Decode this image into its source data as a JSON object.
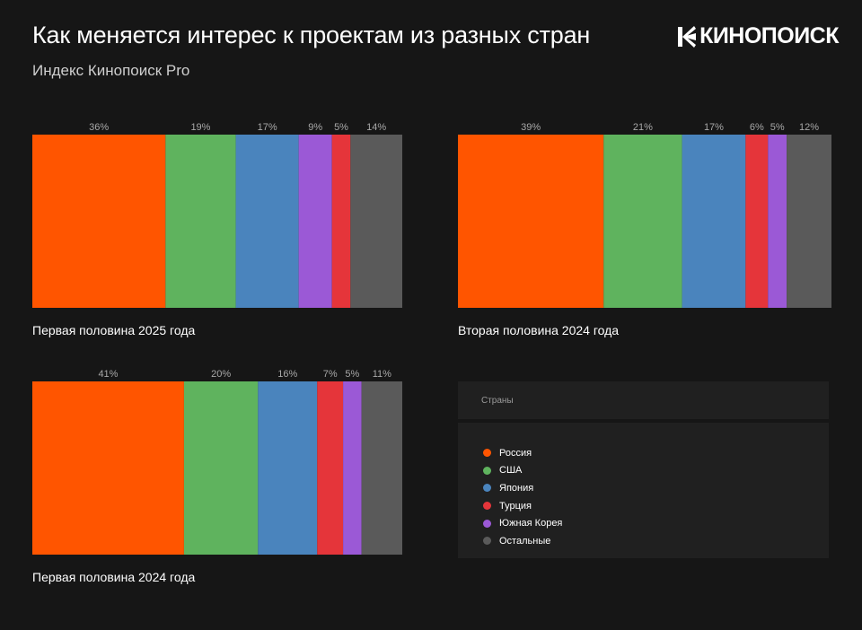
{
  "header": {
    "title": "Как меняется интерес к проектам из разных стран",
    "subtitle": "Индекс Кинопоиск Pro"
  },
  "logo": {
    "text": "КИНОПОИСК",
    "icon": "kinopoisk-burst-logo"
  },
  "legend": {
    "title": "Страны",
    "items": [
      {
        "label": "Россия",
        "color": "#ff5500"
      },
      {
        "label": "США",
        "color": "#5fb35e"
      },
      {
        "label": "Япония",
        "color": "#4a84bd"
      },
      {
        "label": "Турция",
        "color": "#e5353a"
      },
      {
        "label": "Южная Корея",
        "color": "#9b59d6"
      },
      {
        "label": "Остальные",
        "color": "#5a5a5a"
      }
    ]
  },
  "chart_data": [
    {
      "type": "bar",
      "subtype": "stacked-100-horizontal",
      "caption": "Первая половина 2025 года",
      "series": [
        {
          "name": "Россия",
          "value": 36,
          "label": "36%"
        },
        {
          "name": "США",
          "value": 19,
          "label": "19%"
        },
        {
          "name": "Япония",
          "value": 17,
          "label": "17%"
        },
        {
          "name": "Южная Корея",
          "value": 9,
          "label": "9%"
        },
        {
          "name": "Турция",
          "value": 5,
          "label": "5%"
        },
        {
          "name": "Остальные",
          "value": 14,
          "label": "14%"
        }
      ]
    },
    {
      "type": "bar",
      "subtype": "stacked-100-horizontal",
      "caption": "Вторая половина 2024 года",
      "series": [
        {
          "name": "Россия",
          "value": 39,
          "label": "39%"
        },
        {
          "name": "США",
          "value": 21,
          "label": "21%"
        },
        {
          "name": "Япония",
          "value": 17,
          "label": "17%"
        },
        {
          "name": "Турция",
          "value": 6,
          "label": "6%"
        },
        {
          "name": "Южная Корея",
          "value": 5,
          "label": "5%"
        },
        {
          "name": "Остальные",
          "value": 12,
          "label": "12%"
        }
      ]
    },
    {
      "type": "bar",
      "subtype": "stacked-100-horizontal",
      "caption": "Первая половина 2024 года",
      "series": [
        {
          "name": "Россия",
          "value": 41,
          "label": "41%"
        },
        {
          "name": "США",
          "value": 20,
          "label": "20%"
        },
        {
          "name": "Япония",
          "value": 16,
          "label": "16%"
        },
        {
          "name": "Турция",
          "value": 7,
          "label": "7%"
        },
        {
          "name": "Южная Корея",
          "value": 5,
          "label": "5%"
        },
        {
          "name": "Остальные",
          "value": 11,
          "label": "11%"
        }
      ]
    }
  ]
}
